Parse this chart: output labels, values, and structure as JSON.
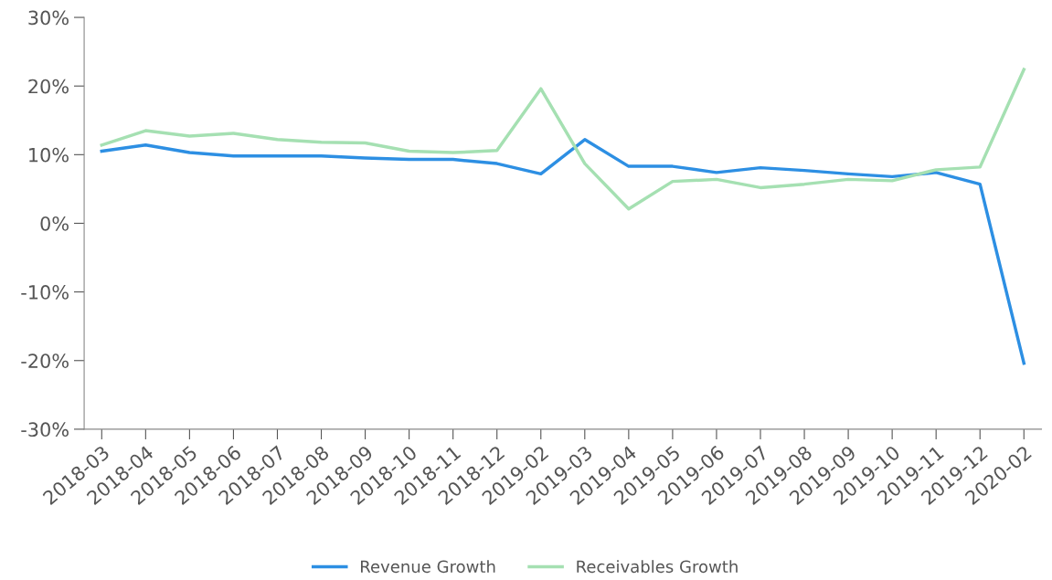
{
  "chart_data": {
    "type": "line",
    "categories": [
      "2018-03",
      "2018-04",
      "2018-05",
      "2018-06",
      "2018-07",
      "2018-08",
      "2018-09",
      "2018-10",
      "2018-11",
      "2018-12",
      "2019-02",
      "2019-03",
      "2019-04",
      "2019-05",
      "2019-06",
      "2019-07",
      "2019-08",
      "2019-09",
      "2019-10",
      "2019-11",
      "2019-12",
      "2020-02"
    ],
    "series": [
      {
        "name": "Revenue Growth",
        "color": "#2d8fe3",
        "values": [
          10.5,
          11.4,
          10.3,
          9.8,
          9.8,
          9.8,
          9.5,
          9.3,
          9.3,
          8.7,
          7.2,
          12.2,
          8.3,
          8.3,
          7.4,
          8.1,
          7.7,
          7.2,
          6.8,
          7.4,
          5.7,
          -20.4
        ]
      },
      {
        "name": "Receivables Growth",
        "color": "#a5e0b2",
        "values": [
          11.4,
          13.5,
          12.7,
          13.1,
          12.2,
          11.8,
          11.7,
          10.5,
          10.3,
          10.6,
          19.6,
          8.7,
          2.1,
          6.1,
          6.4,
          5.2,
          5.7,
          6.4,
          6.2,
          7.8,
          8.2,
          22.4
        ]
      }
    ],
    "ylim": [
      -30,
      30
    ],
    "yticks": [
      {
        "value": -30,
        "label": "-30%"
      },
      {
        "value": -20,
        "label": "-20%"
      },
      {
        "value": -10,
        "label": "-10%"
      },
      {
        "value": 0,
        "label": "0%"
      },
      {
        "value": 10,
        "label": "10%"
      },
      {
        "value": 20,
        "label": "20%"
      },
      {
        "value": 30,
        "label": "30%"
      }
    ],
    "grid": false,
    "legend": "bottom",
    "marker": "none",
    "line_style": "solid"
  }
}
